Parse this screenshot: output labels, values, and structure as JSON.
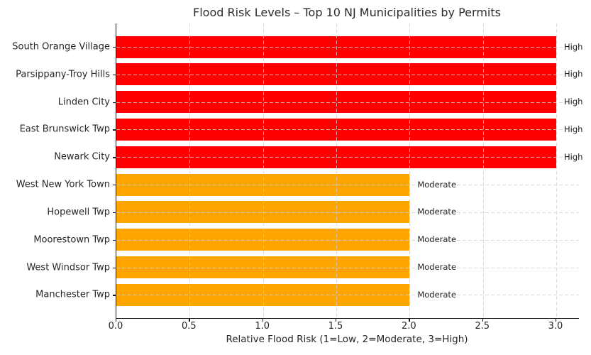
{
  "title": "Flood Risk Levels – Top 10 NJ Municipalities by Permits",
  "axes": {
    "xlabel": "Relative Flood Risk (1=Low, 2=Moderate, 3=High)",
    "x_ticks": [
      "0.0",
      "0.5",
      "1.0",
      "1.5",
      "2.0",
      "2.5",
      "3.0"
    ]
  },
  "chart_data": {
    "type": "bar",
    "orientation": "horizontal",
    "title": "Flood Risk Levels – Top 10 NJ Municipalities by Permits",
    "xlabel": "Relative Flood Risk (1=Low, 2=Moderate, 3=High)",
    "ylabel": "",
    "xlim": [
      0,
      3.15
    ],
    "grid": true,
    "grid_linestyle": "dashed",
    "legend_position": "none",
    "categories": [
      "South Orange Village",
      "Parsippany-Troy Hills",
      "Linden City",
      "East Brunswick Twp",
      "Newark City",
      "West New York Town",
      "Hopewell Twp",
      "Moorestown Twp",
      "West Windsor Twp",
      "Manchester Twp"
    ],
    "values": [
      3,
      3,
      3,
      3,
      3,
      2,
      2,
      2,
      2,
      2
    ],
    "bar_labels": [
      "High",
      "High",
      "High",
      "High",
      "High",
      "Moderate",
      "Moderate",
      "Moderate",
      "Moderate",
      "Moderate"
    ],
    "bar_colors": [
      "#ff0000",
      "#ff0000",
      "#ff0000",
      "#ff0000",
      "#ff0000",
      "#ffa500",
      "#ffa500",
      "#ffa500",
      "#ffa500",
      "#ffa500"
    ],
    "x_tick_labels": [
      "0.0",
      "0.5",
      "1.0",
      "1.5",
      "2.0",
      "2.5",
      "3.0"
    ]
  },
  "colors": {
    "high": "#ff0000",
    "moderate": "#ffa500",
    "grid": "#d3d3d3",
    "text": "#262626"
  }
}
